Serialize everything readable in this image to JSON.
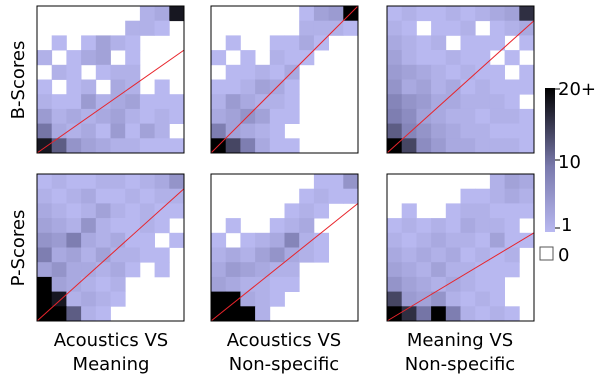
{
  "chart_data": {
    "type": "heatmap",
    "row_labels": [
      "B-Scores",
      "P-Scores"
    ],
    "column_labels": [
      [
        "Acoustics VS",
        "Meaning"
      ],
      [
        "Acoustics VS",
        "Non-specific"
      ],
      [
        "Meaning VS",
        "Non-specific"
      ]
    ],
    "colorbar": {
      "tick_labels": [
        "20+",
        "10",
        "1"
      ],
      "tick_values": [
        20,
        10,
        1
      ],
      "range": [
        1,
        20
      ],
      "zero_label": "0",
      "low_color": "#b8b8f0",
      "high_color": "#000000",
      "zero_color": "#ffffff"
    },
    "grid_size": 10,
    "diagonal_color": "#e8242b",
    "panels": [
      {
        "row": 0,
        "col": 0,
        "diag": [
          0,
          0,
          10,
          7
        ],
        "cells": [
          [
            0,
            0,
            0,
            0,
            0,
            0,
            0,
            2,
            3,
            18
          ],
          [
            0,
            0,
            0,
            0,
            0,
            0,
            2,
            2,
            1,
            0
          ],
          [
            0,
            1,
            0,
            1,
            4,
            2,
            1,
            0,
            0,
            0
          ],
          [
            2,
            0,
            1,
            3,
            4,
            0,
            1,
            0,
            0,
            0
          ],
          [
            0,
            2,
            1,
            0,
            1,
            2,
            2,
            0,
            0,
            0
          ],
          [
            1,
            0,
            1,
            2,
            0,
            3,
            2,
            0,
            1,
            0
          ],
          [
            2,
            1,
            1,
            5,
            2,
            3,
            4,
            1,
            1,
            1
          ],
          [
            5,
            2,
            3,
            2,
            3,
            4,
            2,
            1,
            2,
            1
          ],
          [
            10,
            3,
            2,
            3,
            1,
            5,
            1,
            4,
            2,
            0
          ],
          [
            18,
            12,
            6,
            4,
            3,
            2,
            2,
            1,
            1,
            1
          ]
        ]
      },
      {
        "row": 0,
        "col": 1,
        "diag": [
          0,
          0,
          10,
          10
        ],
        "cells": [
          [
            0,
            0,
            0,
            0,
            0,
            0,
            1,
            4,
            5,
            20
          ],
          [
            0,
            0,
            0,
            0,
            0,
            0,
            2,
            2,
            2,
            1
          ],
          [
            0,
            1,
            0,
            0,
            1,
            1,
            3,
            1,
            0,
            0
          ],
          [
            1,
            0,
            1,
            0,
            2,
            1,
            1,
            0,
            0,
            0
          ],
          [
            0,
            1,
            1,
            2,
            1,
            3,
            0,
            0,
            0,
            0
          ],
          [
            1,
            1,
            2,
            4,
            3,
            1,
            0,
            0,
            0,
            0
          ],
          [
            2,
            5,
            3,
            2,
            2,
            1,
            0,
            0,
            0,
            0
          ],
          [
            3,
            4,
            6,
            4,
            1,
            1,
            0,
            0,
            0,
            0
          ],
          [
            9,
            4,
            3,
            2,
            1,
            0,
            0,
            0,
            0,
            0
          ],
          [
            20,
            14,
            9,
            3,
            1,
            1,
            0,
            0,
            0,
            0
          ]
        ]
      },
      {
        "row": 0,
        "col": 2,
        "diag": [
          0,
          0,
          10,
          9
        ],
        "cells": [
          [
            1,
            2,
            1,
            1,
            2,
            1,
            2,
            3,
            4,
            16
          ],
          [
            2,
            1,
            0,
            1,
            1,
            2,
            0,
            1,
            2,
            3
          ],
          [
            3,
            2,
            1,
            2,
            0,
            1,
            1,
            1,
            0,
            1
          ],
          [
            4,
            2,
            1,
            1,
            2,
            1,
            1,
            0,
            1,
            0
          ],
          [
            5,
            4,
            3,
            2,
            1,
            2,
            1,
            1,
            0,
            1
          ],
          [
            6,
            3,
            4,
            2,
            3,
            1,
            2,
            1,
            1,
            1
          ],
          [
            8,
            6,
            5,
            3,
            3,
            2,
            2,
            2,
            1,
            0
          ],
          [
            9,
            7,
            4,
            3,
            2,
            2,
            1,
            2,
            2,
            1
          ],
          [
            12,
            8,
            6,
            4,
            3,
            2,
            2,
            1,
            1,
            1
          ],
          [
            20,
            14,
            7,
            5,
            3,
            3,
            2,
            2,
            2,
            1
          ]
        ]
      },
      {
        "row": 1,
        "col": 0,
        "diag": [
          0,
          0,
          10,
          9
        ],
        "cells": [
          [
            1,
            2,
            1,
            1,
            2,
            2,
            1,
            2,
            3,
            6
          ],
          [
            2,
            1,
            2,
            3,
            1,
            1,
            2,
            1,
            2,
            2
          ],
          [
            3,
            2,
            1,
            2,
            4,
            2,
            1,
            2,
            1,
            1
          ],
          [
            4,
            3,
            2,
            6,
            2,
            1,
            1,
            2,
            1,
            0
          ],
          [
            6,
            5,
            9,
            3,
            2,
            3,
            1,
            1,
            0,
            1
          ],
          [
            9,
            3,
            4,
            2,
            4,
            2,
            2,
            1,
            1,
            0
          ],
          [
            4,
            6,
            3,
            3,
            2,
            3,
            1,
            0,
            1,
            0
          ],
          [
            20,
            4,
            3,
            2,
            1,
            2,
            0,
            0,
            0,
            0
          ],
          [
            20,
            18,
            2,
            3,
            2,
            1,
            0,
            0,
            0,
            0
          ],
          [
            20,
            20,
            12,
            2,
            1,
            0,
            0,
            0,
            0,
            0
          ]
        ]
      },
      {
        "row": 1,
        "col": 1,
        "diag": [
          0,
          0,
          10,
          8
        ],
        "cells": [
          [
            0,
            0,
            0,
            0,
            0,
            0,
            0,
            1,
            1,
            6
          ],
          [
            0,
            0,
            0,
            0,
            0,
            0,
            1,
            2,
            1,
            1
          ],
          [
            0,
            0,
            0,
            0,
            0,
            1,
            2,
            1,
            0,
            0
          ],
          [
            0,
            1,
            0,
            0,
            1,
            2,
            3,
            0,
            0,
            0
          ],
          [
            1,
            0,
            1,
            2,
            3,
            8,
            2,
            1,
            0,
            0
          ],
          [
            2,
            3,
            2,
            4,
            6,
            3,
            2,
            1,
            0,
            0
          ],
          [
            3,
            5,
            4,
            3,
            2,
            2,
            0,
            0,
            0,
            0
          ],
          [
            4,
            3,
            2,
            2,
            1,
            1,
            0,
            0,
            0,
            0
          ],
          [
            20,
            20,
            3,
            2,
            1,
            0,
            0,
            0,
            0,
            0
          ],
          [
            20,
            20,
            20,
            2,
            0,
            0,
            0,
            0,
            0,
            0
          ]
        ]
      },
      {
        "row": 1,
        "col": 2,
        "diag": [
          0,
          0,
          10,
          6
        ],
        "cells": [
          [
            0,
            0,
            0,
            0,
            0,
            0,
            0,
            2,
            4,
            3
          ],
          [
            0,
            0,
            0,
            0,
            0,
            1,
            1,
            2,
            3,
            2
          ],
          [
            0,
            1,
            0,
            0,
            1,
            2,
            2,
            1,
            1,
            1
          ],
          [
            1,
            2,
            1,
            2,
            1,
            3,
            2,
            2,
            1,
            0
          ],
          [
            2,
            1,
            2,
            3,
            2,
            2,
            1,
            4,
            1,
            1
          ],
          [
            3,
            2,
            3,
            2,
            3,
            1,
            2,
            1,
            2,
            0
          ],
          [
            4,
            3,
            2,
            4,
            2,
            2,
            1,
            1,
            1,
            0
          ],
          [
            6,
            4,
            3,
            2,
            3,
            2,
            1,
            1,
            0,
            0
          ],
          [
            14,
            5,
            4,
            6,
            2,
            1,
            2,
            1,
            0,
            0
          ],
          [
            20,
            16,
            10,
            20,
            9,
            2,
            1,
            2,
            1,
            0
          ]
        ]
      }
    ]
  }
}
